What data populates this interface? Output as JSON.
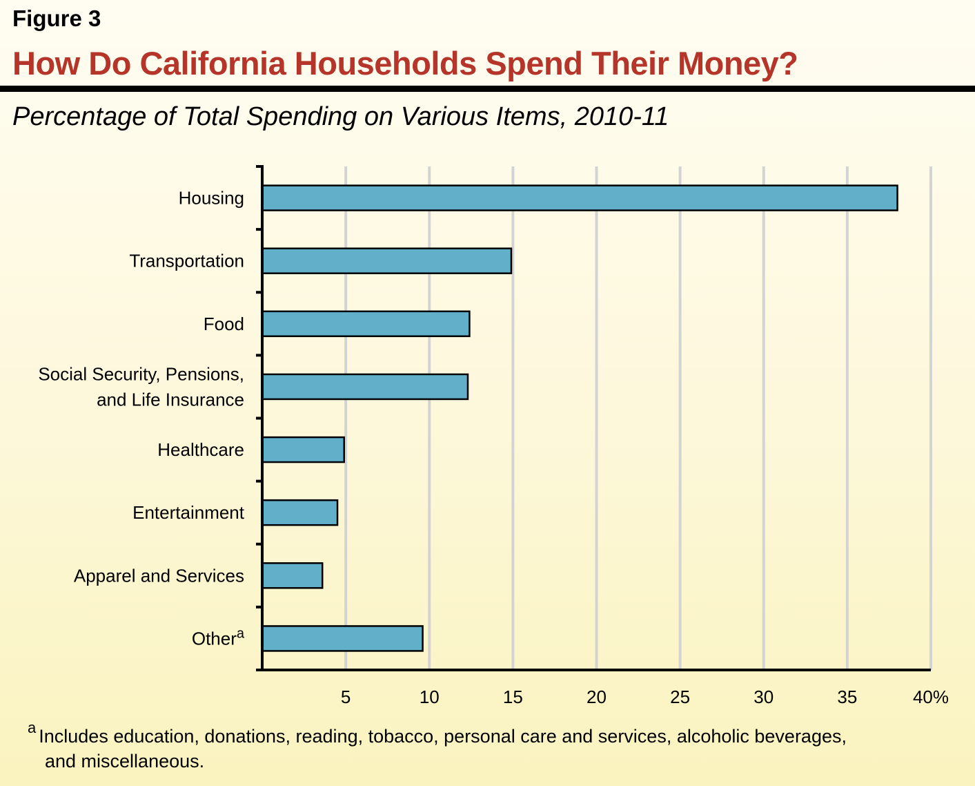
{
  "figure_label": "Figure 3",
  "title": "How Do California Households Spend Their Money?",
  "subtitle": "Percentage of Total Spending on Various Items, 2010-11",
  "colors": {
    "bar": "#62afca",
    "title": "#b5352a",
    "grid": "#d3d3d3"
  },
  "chart_data": {
    "type": "bar",
    "orientation": "horizontal",
    "categories": [
      "Housing",
      "Transportation",
      "Food",
      "Social Security, Pensions, and Life Insurance",
      "Healthcare",
      "Entertainment",
      "Apparel and Services",
      "Other"
    ],
    "category_lines": [
      [
        "Housing"
      ],
      [
        "Transportation"
      ],
      [
        "Food"
      ],
      [
        "Social Security, Pensions,",
        "and Life Insurance"
      ],
      [
        "Healthcare"
      ],
      [
        "Entertainment"
      ],
      [
        "Apparel and Services"
      ],
      [
        "Other"
      ]
    ],
    "category_superscripts": [
      "",
      "",
      "",
      "",
      "",
      "",
      "",
      "a"
    ],
    "values": [
      38.0,
      14.9,
      12.4,
      12.3,
      4.9,
      4.5,
      3.6,
      9.6
    ],
    "xlim": [
      0,
      40
    ],
    "xticks": [
      5,
      10,
      15,
      20,
      25,
      30,
      35,
      40
    ],
    "xtick_labels": [
      "5",
      "10",
      "15",
      "20",
      "25",
      "30",
      "35",
      "40%"
    ],
    "grid": true,
    "xlabel": "",
    "ylabel": ""
  },
  "footnote": {
    "marker": "a",
    "line1": "Includes  education, donations, reading, tobacco, personal care and services, alcoholic beverages,",
    "line2": "and miscellaneous."
  }
}
